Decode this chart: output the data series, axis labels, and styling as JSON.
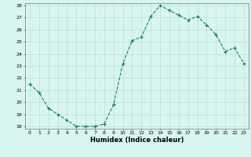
{
  "x": [
    0,
    1,
    2,
    3,
    4,
    5,
    6,
    7,
    8,
    9,
    10,
    11,
    12,
    13,
    14,
    15,
    16,
    17,
    18,
    19,
    20,
    21,
    22,
    23
  ],
  "y": [
    21.5,
    20.8,
    19.5,
    19.0,
    18.5,
    18.0,
    18.0,
    18.0,
    18.2,
    19.8,
    23.2,
    25.1,
    25.4,
    27.1,
    28.0,
    27.6,
    27.2,
    26.8,
    27.1,
    26.4,
    25.6,
    24.2,
    24.5,
    23.2
  ],
  "line_color": "#1a7a6e",
  "marker_color": "#1a7a6e",
  "bg_color": "#d8f5f0",
  "grid_color": "#b8e0d8",
  "xlabel": "Humidex (Indice chaleur)",
  "ylim": [
    18,
    28
  ],
  "xlim": [
    -0.5,
    23.5
  ],
  "yticks": [
    18,
    19,
    20,
    21,
    22,
    23,
    24,
    25,
    26,
    27,
    28
  ],
  "xticks": [
    0,
    1,
    2,
    3,
    4,
    5,
    6,
    7,
    8,
    9,
    10,
    11,
    12,
    13,
    14,
    15,
    16,
    17,
    18,
    19,
    20,
    21,
    22,
    23
  ]
}
